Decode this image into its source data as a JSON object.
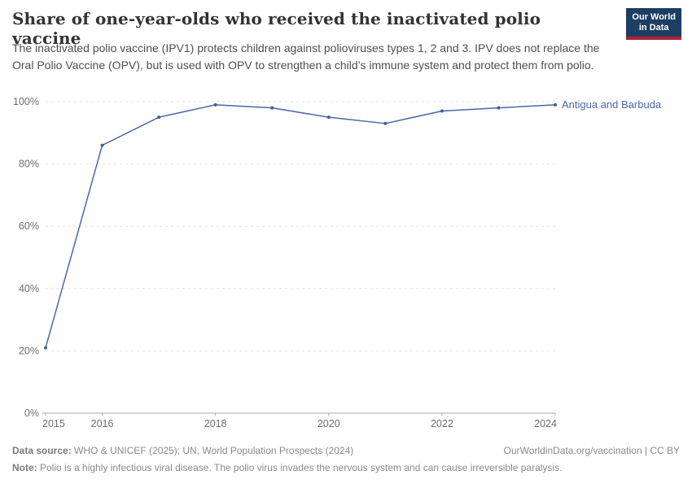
{
  "header": {
    "title": "Share of one-year-olds who received the inactivated polio vaccine",
    "subtitle": "The inactivated polio vaccine (IPV1) protects children against polioviruses types 1, 2 and 3. IPV does not replace the Oral Polio Vaccine (OPV), but is used with OPV to strengthen a child’s immune system and protect them from polio.",
    "logo_line1": "Our World",
    "logo_line2": "in Data"
  },
  "chart_data": {
    "type": "line",
    "title": "Share of one-year-olds who received the inactivated polio vaccine",
    "x": [
      2015,
      2016,
      2017,
      2018,
      2019,
      2020,
      2021,
      2022,
      2023,
      2024
    ],
    "series": [
      {
        "name": "Antigua and Barbuda",
        "values": [
          21,
          86,
          95,
          99,
          98,
          95,
          93,
          97,
          98,
          99
        ],
        "color": "#4a69a8"
      }
    ],
    "xlabel": "",
    "ylabel": "",
    "xlim": [
      2015,
      2024
    ],
    "ylim": [
      0,
      100
    ],
    "xticks": [
      2015,
      2016,
      2018,
      2020,
      2022,
      2024
    ],
    "yticks": [
      0,
      20,
      40,
      60,
      80,
      100
    ],
    "ytick_suffix": "%",
    "grid": "horizontal-dashed",
    "legend_position": "end-of-line-label"
  },
  "footer": {
    "datasource_label": "Data source:",
    "datasource_text": " WHO & UNICEF (2025); UN, World Population Prospects (2024)",
    "rights": "OurWorldinData.org/vaccination | CC BY",
    "note_label": "Note:",
    "note_text": " Polio is a highly infectious viral disease. The polio virus invades the nervous system and can cause irreversible paralysis."
  },
  "colors": {
    "line": "#4a69a8",
    "point": "#3e5d9c",
    "entity_label": "#4a69a8",
    "gridline": "#e0e0e0",
    "axis_line": "#a8a8a8",
    "axis_label": "#6e6e6e",
    "logo_bg": "#1d3d63",
    "logo_stripe": "#b22238"
  }
}
